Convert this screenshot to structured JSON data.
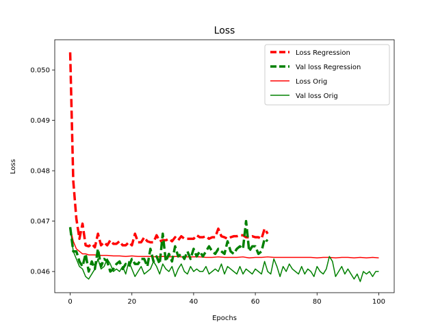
{
  "chart_data": {
    "type": "line",
    "title": "Loss",
    "xlabel": "Epochs",
    "ylabel": "Loss",
    "xlim": [
      -5,
      105
    ],
    "ylim": [
      0.04558,
      0.0506
    ],
    "xticks": [
      0,
      20,
      40,
      60,
      80,
      100
    ],
    "xtick_labels": [
      "0",
      "20",
      "40",
      "60",
      "80",
      "100"
    ],
    "yticks": [
      0.046,
      0.047,
      0.048,
      0.049,
      0.05
    ],
    "ytick_labels": [
      "0.046",
      "0.047",
      "0.048",
      "0.049",
      "0.050"
    ],
    "grid": false,
    "legend_position": "top-right",
    "series": [
      {
        "name": "Loss Regression",
        "color": "#ff0000",
        "style": "dashed-thick",
        "x": [
          0,
          1,
          2,
          3,
          4,
          5,
          6,
          7,
          8,
          9,
          10,
          11,
          12,
          13,
          14,
          15,
          16,
          17,
          18,
          19,
          20,
          21,
          22,
          23,
          24,
          25,
          26,
          27,
          28,
          29,
          30,
          31,
          32,
          33,
          34,
          35,
          36,
          37,
          38,
          39,
          40,
          41,
          42,
          43,
          44,
          45,
          46,
          47,
          48,
          49,
          50,
          51,
          52,
          53,
          54,
          55,
          56,
          57,
          58,
          59,
          60,
          61,
          62,
          63,
          64
        ],
        "values": [
          0.05035,
          0.0478,
          0.04705,
          0.04665,
          0.04695,
          0.04652,
          0.0465,
          0.04655,
          0.04648,
          0.04675,
          0.04652,
          0.04658,
          0.04652,
          0.04662,
          0.04655,
          0.04655,
          0.0466,
          0.04652,
          0.04652,
          0.04658,
          0.04652,
          0.04675,
          0.04658,
          0.04658,
          0.04668,
          0.0466,
          0.04658,
          0.04658,
          0.04672,
          0.0466,
          0.04662,
          0.04662,
          0.04665,
          0.0466,
          0.04668,
          0.04662,
          0.0467,
          0.04665,
          0.04665,
          0.04665,
          0.04665,
          0.04672,
          0.04668,
          0.04668,
          0.0467,
          0.04665,
          0.04668,
          0.04668,
          0.04685,
          0.0467,
          0.04668,
          0.04665,
          0.04668,
          0.0467,
          0.0467,
          0.04672,
          0.04672,
          0.04668,
          0.04668,
          0.0467,
          0.04668,
          0.04668,
          0.04665,
          0.04685,
          0.04675
        ]
      },
      {
        "name": "Val loss Regression",
        "color": "#008000",
        "style": "dashed-thick",
        "x": [
          0,
          1,
          2,
          3,
          4,
          5,
          6,
          7,
          8,
          9,
          10,
          11,
          12,
          13,
          14,
          15,
          16,
          17,
          18,
          19,
          20,
          21,
          22,
          23,
          24,
          25,
          26,
          27,
          28,
          29,
          30,
          31,
          32,
          33,
          34,
          35,
          36,
          37,
          38,
          39,
          40,
          41,
          42,
          43,
          44,
          45,
          46,
          47,
          48,
          49,
          50,
          51,
          52,
          53,
          54,
          55,
          56,
          57,
          58,
          59,
          60,
          61,
          62,
          63,
          64
        ],
        "values": [
          0.04688,
          0.0464,
          0.0464,
          0.0462,
          0.0461,
          0.04635,
          0.046,
          0.0462,
          0.04605,
          0.04645,
          0.0461,
          0.04625,
          0.0462,
          0.046,
          0.04605,
          0.04615,
          0.0462,
          0.04605,
          0.04615,
          0.0461,
          0.04625,
          0.04615,
          0.04615,
          0.04625,
          0.04625,
          0.0461,
          0.04645,
          0.0462,
          0.0463,
          0.04615,
          0.04675,
          0.0462,
          0.04635,
          0.0462,
          0.0465,
          0.0463,
          0.04635,
          0.04625,
          0.0464,
          0.04625,
          0.04645,
          0.0463,
          0.0464,
          0.0463,
          0.0464,
          0.0465,
          0.0464,
          0.04635,
          0.04645,
          0.0464,
          0.04635,
          0.0466,
          0.0464,
          0.04635,
          0.04645,
          0.0465,
          0.04645,
          0.047,
          0.0464,
          0.0465,
          0.0465,
          0.04635,
          0.0464,
          0.04665,
          0.0466
        ]
      },
      {
        "name": "Loss Orig",
        "color": "#ff0000",
        "style": "solid",
        "x": [
          0,
          1,
          2,
          3,
          4,
          5,
          6,
          7,
          8,
          9,
          10,
          12,
          14,
          16,
          18,
          20,
          22,
          24,
          26,
          28,
          30,
          32,
          34,
          36,
          38,
          40,
          42,
          44,
          46,
          48,
          50,
          52,
          54,
          56,
          58,
          60,
          62,
          64,
          66,
          68,
          70,
          72,
          74,
          76,
          78,
          80,
          82,
          84,
          86,
          88,
          90,
          92,
          94,
          96,
          98,
          100
        ],
        "values": [
          0.04688,
          0.0466,
          0.04645,
          0.0464,
          0.04635,
          0.04635,
          0.04633,
          0.04633,
          0.04633,
          0.04632,
          0.04632,
          0.04632,
          0.04631,
          0.04631,
          0.0463,
          0.04631,
          0.0463,
          0.0463,
          0.0463,
          0.04629,
          0.0463,
          0.04629,
          0.0463,
          0.04629,
          0.04629,
          0.04629,
          0.04629,
          0.04628,
          0.04628,
          0.04629,
          0.04628,
          0.04628,
          0.04628,
          0.04629,
          0.04627,
          0.04628,
          0.04628,
          0.04629,
          0.04628,
          0.04628,
          0.04628,
          0.04628,
          0.04628,
          0.04628,
          0.04628,
          0.04627,
          0.04628,
          0.04628,
          0.04627,
          0.04628,
          0.04628,
          0.04627,
          0.04628,
          0.04627,
          0.04628,
          0.04627
        ]
      },
      {
        "name": "Val loss Orig",
        "color": "#008000",
        "style": "solid",
        "x": [
          0,
          1,
          2,
          3,
          4,
          5,
          6,
          7,
          8,
          9,
          10,
          11,
          12,
          13,
          14,
          15,
          16,
          17,
          18,
          19,
          20,
          21,
          22,
          23,
          24,
          25,
          26,
          27,
          28,
          29,
          30,
          31,
          32,
          33,
          34,
          35,
          36,
          37,
          38,
          39,
          40,
          41,
          42,
          43,
          44,
          45,
          46,
          47,
          48,
          49,
          50,
          51,
          52,
          53,
          54,
          55,
          56,
          57,
          58,
          59,
          60,
          61,
          62,
          63,
          64,
          65,
          66,
          67,
          68,
          69,
          70,
          71,
          72,
          73,
          74,
          75,
          76,
          77,
          78,
          79,
          80,
          81,
          82,
          83,
          84,
          85,
          86,
          87,
          88,
          89,
          90,
          91,
          92,
          93,
          94,
          95,
          96,
          97,
          98,
          99,
          100
        ],
        "values": [
          0.04688,
          0.0464,
          0.04625,
          0.0461,
          0.04605,
          0.0459,
          0.04585,
          0.04595,
          0.04605,
          0.04625,
          0.04605,
          0.0461,
          0.04625,
          0.04615,
          0.046,
          0.04605,
          0.046,
          0.0461,
          0.04595,
          0.0462,
          0.04605,
          0.0459,
          0.046,
          0.0461,
          0.04595,
          0.046,
          0.04605,
          0.0462,
          0.0461,
          0.04595,
          0.04615,
          0.04605,
          0.046,
          0.0461,
          0.0459,
          0.04605,
          0.04615,
          0.046,
          0.04595,
          0.0461,
          0.046,
          0.04605,
          0.046,
          0.046,
          0.0461,
          0.04595,
          0.046,
          0.04605,
          0.046,
          0.04615,
          0.04595,
          0.0461,
          0.04605,
          0.046,
          0.04595,
          0.0461,
          0.04595,
          0.04605,
          0.046,
          0.04595,
          0.04605,
          0.046,
          0.04595,
          0.0462,
          0.046,
          0.04595,
          0.04625,
          0.0461,
          0.0459,
          0.0461,
          0.046,
          0.04615,
          0.04605,
          0.046,
          0.04595,
          0.0461,
          0.04595,
          0.04605,
          0.046,
          0.0459,
          0.0461,
          0.046,
          0.04595,
          0.04605,
          0.0463,
          0.0462,
          0.0459,
          0.046,
          0.0461,
          0.04595,
          0.04605,
          0.04595,
          0.04585,
          0.04595,
          0.0458,
          0.046,
          0.04595,
          0.046,
          0.0459,
          0.046,
          0.046
        ]
      }
    ]
  }
}
